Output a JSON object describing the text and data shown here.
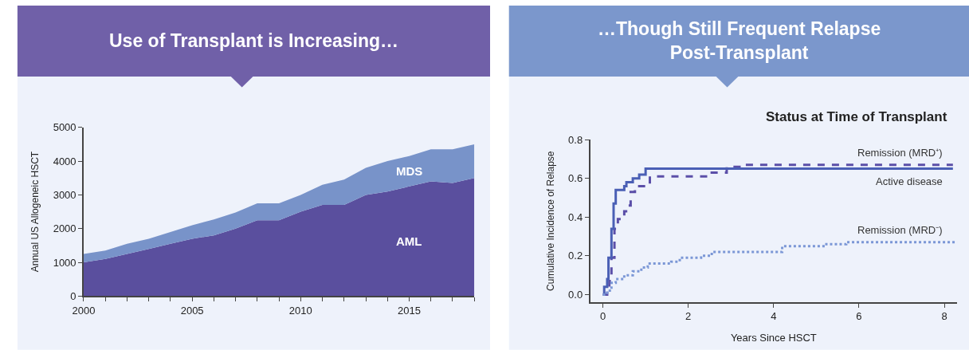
{
  "chart_data": [
    {
      "type": "area",
      "title": "Use of Transplant is Increasing…",
      "ylabel": "Annual US Allogeneic HSCT",
      "stacked": true,
      "grid": false,
      "x": [
        2000,
        2001,
        2002,
        2003,
        2004,
        2005,
        2006,
        2007,
        2008,
        2009,
        2010,
        2011,
        2012,
        2013,
        2014,
        2015,
        2016,
        2017,
        2018
      ],
      "series": [
        {
          "name": "AML",
          "color": "#5a4f9e",
          "values": [
            1000,
            1100,
            1250,
            1400,
            1550,
            1700,
            1800,
            2000,
            2250,
            2250,
            2500,
            2700,
            2700,
            3000,
            3100,
            3250,
            3400,
            3350,
            3500
          ]
        },
        {
          "name": "MDS",
          "color": "#7893c9",
          "values": [
            250,
            250,
            300,
            300,
            350,
            400,
            470,
            480,
            500,
            500,
            500,
            600,
            750,
            800,
            900,
            900,
            950,
            1000,
            1000
          ]
        }
      ],
      "xlim": [
        2000,
        2018
      ],
      "xticks": [
        2000,
        {
          "value": 2001,
          "label": null
        },
        {
          "value": 2002,
          "label": null
        },
        {
          "value": 2003,
          "label": null
        },
        {
          "value": 2004,
          "label": null
        },
        2005,
        {
          "value": 2006,
          "label": null
        },
        {
          "value": 2007,
          "label": null
        },
        {
          "value": 2008,
          "label": null
        },
        {
          "value": 2009,
          "label": null
        },
        2010,
        {
          "value": 2011,
          "label": null
        },
        {
          "value": 2012,
          "label": null
        },
        {
          "value": 2013,
          "label": null
        },
        {
          "value": 2014,
          "label": null
        },
        2015,
        {
          "value": 2016,
          "label": null
        },
        {
          "value": 2017,
          "label": null
        },
        {
          "value": 2018,
          "label": null
        }
      ],
      "ylim": [
        0,
        5000
      ],
      "yticks": [
        0,
        1000,
        2000,
        3000,
        4000,
        5000
      ]
    },
    {
      "type": "step",
      "title": "…Though Still Frequent Relapse Post-Transplant",
      "subtitle": "Status at Time of Transplant",
      "xlabel": "Years Since HSCT",
      "ylabel": "Cumulative Incidence of Relapse",
      "grid": false,
      "series": [
        {
          "name": "Remission (MRD⁺)",
          "color": "#5b4fa8",
          "line_style": "dashed",
          "x": [
            0,
            0.1,
            0.15,
            0.2,
            0.27,
            0.35,
            0.5,
            0.6,
            0.65,
            0.75,
            1.1,
            2.5,
            2.9,
            3.2,
            8.2
          ],
          "values": [
            0,
            0.03,
            0.07,
            0.19,
            0.34,
            0.39,
            0.43,
            0.46,
            0.53,
            0.56,
            0.61,
            0.63,
            0.66,
            0.67,
            0.67
          ]
        },
        {
          "name": "Active disease",
          "color": "#4a5fb5",
          "line_style": "solid",
          "x": [
            0,
            0.03,
            0.1,
            0.13,
            0.2,
            0.25,
            0.3,
            0.5,
            0.55,
            0.7,
            0.85,
            1.0,
            8.2
          ],
          "values": [
            0,
            0.04,
            0.08,
            0.19,
            0.34,
            0.47,
            0.54,
            0.56,
            0.58,
            0.6,
            0.62,
            0.65,
            0.65
          ]
        },
        {
          "name": "Remission (MRD⁻)",
          "color": "#7b97d6",
          "line_style": "dotted",
          "x": [
            0,
            0.1,
            0.2,
            0.3,
            0.5,
            0.7,
            0.9,
            1.05,
            1.6,
            1.8,
            2.3,
            2.55,
            4.1,
            4.2,
            5.1,
            5.2,
            5.7,
            8.3
          ],
          "values": [
            0,
            0.02,
            0.06,
            0.08,
            0.1,
            0.12,
            0.14,
            0.16,
            0.17,
            0.19,
            0.2,
            0.22,
            0.22,
            0.25,
            0.25,
            0.26,
            0.27,
            0.27
          ]
        }
      ],
      "xlim": [
        -0.3,
        8.3
      ],
      "xticks": [
        0,
        2,
        4,
        6,
        8
      ],
      "ylim": [
        -0.04,
        0.8
      ],
      "yticks": [
        {
          "value": 0,
          "label": "0.0"
        },
        0.2,
        0.4,
        0.6,
        0.8
      ]
    }
  ]
}
